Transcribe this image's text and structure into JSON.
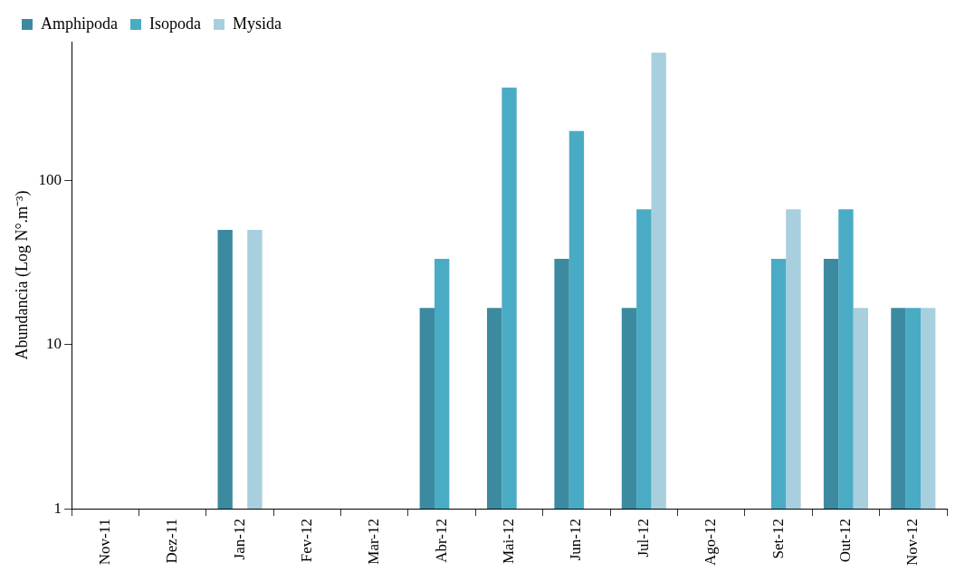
{
  "chart_data": {
    "type": "bar",
    "ylabel": "Abundancia (Log N°.m⁻³)",
    "categories": [
      "Nov-11",
      "Dez-11",
      "Jan-12",
      "Fev-12",
      "Mar-12",
      "Abr-12",
      "Mai-12",
      "Jun-12",
      "Jul-12",
      "Ago-12",
      "Set-12",
      "Out-12",
      "Nov-12"
    ],
    "series": [
      {
        "name": "Amphipoda",
        "color": "#3c8aa0",
        "values": [
          null,
          null,
          50,
          null,
          null,
          16.7,
          16.7,
          33.3,
          16.7,
          null,
          null,
          33.3,
          16.7
        ]
      },
      {
        "name": "Isopoda",
        "color": "#4aabc5",
        "values": [
          null,
          null,
          null,
          null,
          null,
          33.3,
          367,
          200,
          66.7,
          null,
          33.3,
          66.7,
          16.7
        ]
      },
      {
        "name": "Mysida",
        "color": "#a8cfdd",
        "values": [
          null,
          null,
          50,
          null,
          null,
          null,
          null,
          null,
          600,
          null,
          66.7,
          16.7,
          16.7
        ]
      }
    ],
    "log": "y",
    "ylim": [
      1,
      700
    ],
    "yticks": [
      1,
      10,
      100
    ],
    "grid": false,
    "legend": "top left"
  }
}
